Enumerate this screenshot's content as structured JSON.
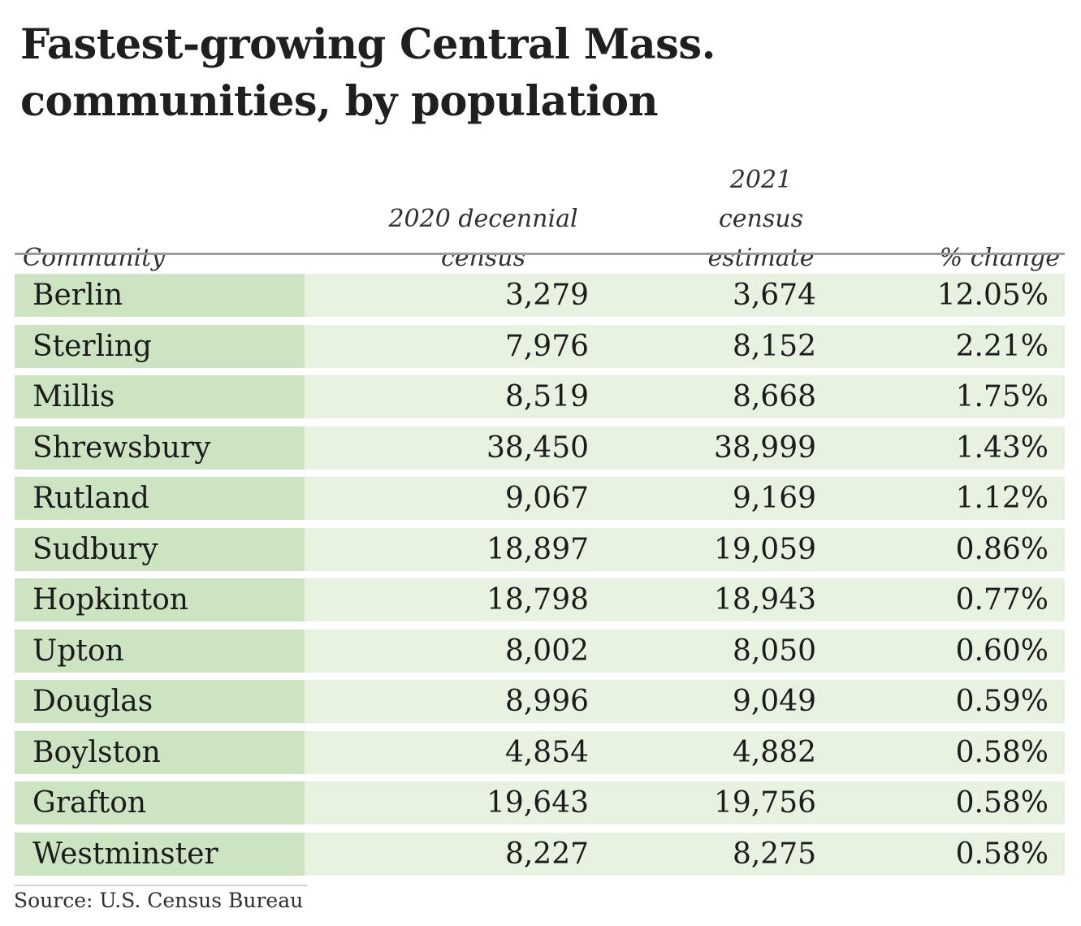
{
  "title": "Fastest-growing Central Mass. communities, by population",
  "source_line": "Source: U.S. Census Bureau",
  "colors": {
    "community_column_bg": "#cde4c2",
    "value_columns_bg": "#e8f2e1",
    "header_rule": "#9c9c9c",
    "text": "#1b1b1b"
  },
  "table": {
    "header": {
      "community": "Community",
      "census2020_line1": "2020 decennial",
      "census2020_line2": "census",
      "estimate2021_line1": "2021 census",
      "estimate2021_line2": "estimate",
      "change": "% change"
    },
    "rows": [
      {
        "community": "Berlin",
        "census2020": "3,279",
        "estimate2021": "3,674",
        "pct_change": "12.05%"
      },
      {
        "community": "Sterling",
        "census2020": "7,976",
        "estimate2021": "8,152",
        "pct_change": "2.21%"
      },
      {
        "community": "Millis",
        "census2020": "8,519",
        "estimate2021": "8,668",
        "pct_change": "1.75%"
      },
      {
        "community": "Shrewsbury",
        "census2020": "38,450",
        "estimate2021": "38,999",
        "pct_change": "1.43%"
      },
      {
        "community": "Rutland",
        "census2020": "9,067",
        "estimate2021": "9,169",
        "pct_change": "1.12%"
      },
      {
        "community": "Sudbury",
        "census2020": "18,897",
        "estimate2021": "19,059",
        "pct_change": "0.86%"
      },
      {
        "community": "Hopkinton",
        "census2020": "18,798",
        "estimate2021": "18,943",
        "pct_change": "0.77%"
      },
      {
        "community": "Upton",
        "census2020": "8,002",
        "estimate2021": "8,050",
        "pct_change": "0.60%"
      },
      {
        "community": "Douglas",
        "census2020": "8,996",
        "estimate2021": "9,049",
        "pct_change": "0.59%"
      },
      {
        "community": "Boylston",
        "census2020": "4,854",
        "estimate2021": "4,882",
        "pct_change": "0.58%"
      },
      {
        "community": "Grafton",
        "census2020": "19,643",
        "estimate2021": "19,756",
        "pct_change": "0.58%"
      },
      {
        "community": "Westminster",
        "census2020": "8,227",
        "estimate2021": "8,275",
        "pct_change": "0.58%"
      }
    ]
  },
  "chart_data": {
    "type": "table",
    "title": "Fastest-growing Central Mass. communities, by population",
    "columns": [
      "Community",
      "2020 decennial census",
      "2021 census estimate",
      "% change"
    ],
    "rows": [
      [
        "Berlin",
        3279,
        3674,
        12.05
      ],
      [
        "Sterling",
        7976,
        8152,
        2.21
      ],
      [
        "Millis",
        8519,
        8668,
        1.75
      ],
      [
        "Shrewsbury",
        38450,
        38999,
        1.43
      ],
      [
        "Rutland",
        9067,
        9169,
        1.12
      ],
      [
        "Sudbury",
        18897,
        19059,
        0.86
      ],
      [
        "Hopkinton",
        18798,
        18943,
        0.77
      ],
      [
        "Upton",
        8002,
        8050,
        0.6
      ],
      [
        "Douglas",
        8996,
        9049,
        0.59
      ],
      [
        "Boylston",
        4854,
        4882,
        0.58
      ],
      [
        "Grafton",
        19643,
        19756,
        0.58
      ],
      [
        "Westminster",
        8227,
        8275,
        0.58
      ]
    ],
    "pct_change_unit": "%",
    "source": "U.S. Census Bureau"
  }
}
